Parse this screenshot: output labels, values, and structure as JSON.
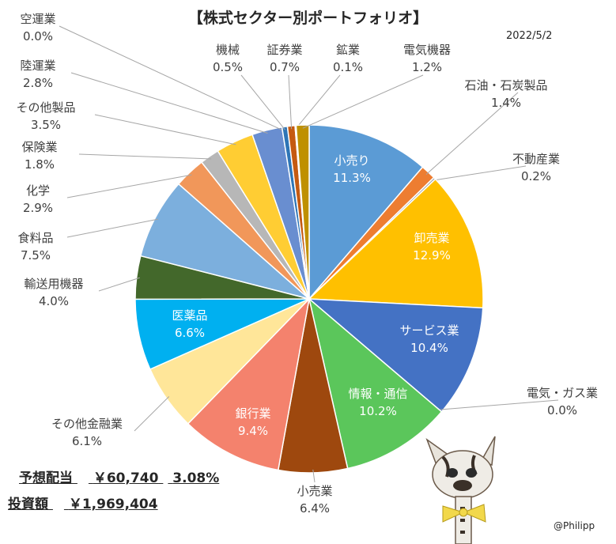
{
  "header": {
    "title": "【株式セクター別ポートフォリオ】",
    "date": "2022/5/2"
  },
  "summary": {
    "dividend_label": "予想配当",
    "dividend_value": "￥60,740",
    "dividend_yield": "3.08%",
    "investment_label": "投資額",
    "investment_value": "￥1,969,404"
  },
  "credit": "@Philipp",
  "mascot": {
    "icon": "cat-figure-icon"
  },
  "chart_data": {
    "type": "pie",
    "title": "【株式セクター別ポートフォリオ】",
    "unit": "%",
    "start": "12 o'clock, clockwise",
    "slices": [
      {
        "label": "小売り",
        "value": 11.3,
        "display": "11.3%",
        "color": "#5B9BD5"
      },
      {
        "label": "石油・石炭製品",
        "value": 1.4,
        "display": "1.4%",
        "color": "#ED7D31"
      },
      {
        "label": "不動産業",
        "value": 0.2,
        "display": "0.2%",
        "color": "#A5A5A5"
      },
      {
        "label": "卸売業",
        "value": 12.9,
        "display": "12.9%",
        "color": "#FFC000"
      },
      {
        "label": "サービス業",
        "value": 10.4,
        "display": "10.4%",
        "color": "#4472C4"
      },
      {
        "label": "電気・ガス業",
        "value": 0.0,
        "display": "0.0%",
        "color": "#70AD47"
      },
      {
        "label": "情報・通信",
        "value": 10.2,
        "display": "10.2%",
        "color": "#5BC65B"
      },
      {
        "label": "小売業",
        "value": 6.4,
        "display": "6.4%",
        "color": "#9E480E"
      },
      {
        "label": "銀行業",
        "value": 9.4,
        "display": "9.4%",
        "color": "#F4826D"
      },
      {
        "label": "その他金融業",
        "value": 6.1,
        "display": "6.1%",
        "color": "#FFE699"
      },
      {
        "label": "医薬品",
        "value": 6.6,
        "display": "6.6%",
        "color": "#00B0F0"
      },
      {
        "label": "輸送用機器",
        "value": 4.0,
        "display": "4.0%",
        "color": "#43682B"
      },
      {
        "label": "食料品",
        "value": 7.5,
        "display": "7.5%",
        "color": "#7CAFDD"
      },
      {
        "label": "化学",
        "value": 2.9,
        "display": "2.9%",
        "color": "#F1975A"
      },
      {
        "label": "保険業",
        "value": 1.8,
        "display": "1.8%",
        "color": "#B7B7B7"
      },
      {
        "label": "その他製品",
        "value": 3.5,
        "display": "3.5%",
        "color": "#FFCD33"
      },
      {
        "label": "陸運業",
        "value": 2.8,
        "display": "2.8%",
        "color": "#698ED0"
      },
      {
        "label": "空運業",
        "value": 0.0,
        "display": "0.0%",
        "color": "#8CC168"
      },
      {
        "label": "機械",
        "value": 0.5,
        "display": "0.5%",
        "color": "#2E75B6"
      },
      {
        "label": "証券業",
        "value": 0.7,
        "display": "0.7%",
        "color": "#C55A11"
      },
      {
        "label": "鉱業",
        "value": 0.1,
        "display": "0.1%",
        "color": "#7B7B7B"
      },
      {
        "label": "電気機器",
        "value": 1.2,
        "display": "1.2%",
        "color": "#BF9000"
      }
    ]
  }
}
